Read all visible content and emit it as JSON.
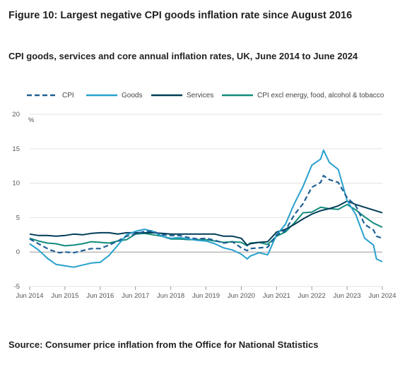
{
  "header": {
    "title": "Figure 10: Largest negative CPI goods inflation rate since August 2016",
    "subtitle": "CPI goods, services and core annual inflation rates, UK, June 2014 to June 2024"
  },
  "source": "Source: Consumer price inflation from the Office for National Statistics",
  "chart_data": {
    "type": "line",
    "ylabel": "%",
    "ylim": [
      -5,
      20
    ],
    "yticks": [
      -5,
      0,
      5,
      10,
      15,
      20
    ],
    "xlim": [
      "2014-06",
      "2024-06"
    ],
    "xticks": [
      "Jun 2014",
      "Jun 2015",
      "Jun 2016",
      "Jun 2017",
      "Jun 2018",
      "Jun 2019",
      "Jun 2020",
      "Jun 2021",
      "Jun 2022",
      "Jun 2023",
      "Jun 2024"
    ],
    "legend": "top",
    "colors": {
      "cpi": "#206095",
      "goods": "#27a0cc",
      "services": "#003c57",
      "core": "#118c7b"
    },
    "series": [
      {
        "name": "CPI",
        "style": "dashed",
        "color": "#206095",
        "x": [
          "2014-06",
          "2014-09",
          "2014-12",
          "2015-01",
          "2015-04",
          "2015-06",
          "2015-09",
          "2015-12",
          "2016-03",
          "2016-06",
          "2016-09",
          "2016-12",
          "2017-03",
          "2017-06",
          "2017-09",
          "2017-12",
          "2018-03",
          "2018-06",
          "2018-09",
          "2018-12",
          "2019-03",
          "2019-06",
          "2019-09",
          "2019-12",
          "2020-03",
          "2020-06",
          "2020-08",
          "2020-09",
          "2020-12",
          "2021-03",
          "2021-06",
          "2021-09",
          "2021-12",
          "2022-03",
          "2022-06",
          "2022-09",
          "2022-10",
          "2022-12",
          "2023-03",
          "2023-06",
          "2023-09",
          "2023-12",
          "2024-03",
          "2024-04",
          "2024-06"
        ],
        "values": [
          1.9,
          1.2,
          0.5,
          0.3,
          -0.1,
          0.0,
          -0.1,
          0.2,
          0.5,
          0.5,
          1.0,
          1.6,
          2.3,
          2.6,
          3.0,
          3.0,
          2.5,
          2.4,
          2.4,
          2.1,
          1.9,
          2.0,
          1.7,
          1.3,
          1.5,
          0.6,
          0.2,
          0.5,
          0.6,
          0.7,
          2.5,
          3.1,
          5.4,
          7.0,
          9.4,
          10.1,
          11.1,
          10.5,
          10.1,
          7.9,
          6.7,
          4.0,
          3.2,
          2.3,
          2.0
        ]
      },
      {
        "name": "Goods",
        "style": "solid",
        "color": "#27a0cc",
        "x": [
          "2014-06",
          "2014-09",
          "2014-12",
          "2015-03",
          "2015-06",
          "2015-09",
          "2015-12",
          "2016-03",
          "2016-06",
          "2016-09",
          "2016-12",
          "2017-03",
          "2017-06",
          "2017-09",
          "2017-12",
          "2018-03",
          "2018-06",
          "2018-09",
          "2018-12",
          "2019-03",
          "2019-06",
          "2019-09",
          "2019-12",
          "2020-03",
          "2020-06",
          "2020-08",
          "2020-09",
          "2020-12",
          "2021-03",
          "2021-06",
          "2021-09",
          "2021-12",
          "2022-03",
          "2022-06",
          "2022-09",
          "2022-10",
          "2022-12",
          "2023-03",
          "2023-06",
          "2023-09",
          "2023-12",
          "2024-03",
          "2024-04",
          "2024-06"
        ],
        "values": [
          1.2,
          0.3,
          -0.9,
          -1.8,
          -2.0,
          -2.2,
          -1.9,
          -1.6,
          -1.5,
          -0.5,
          1.0,
          2.5,
          3.0,
          3.3,
          3.0,
          2.3,
          2.0,
          2.1,
          1.9,
          1.7,
          1.6,
          1.2,
          0.6,
          0.3,
          -0.3,
          -1.0,
          -0.6,
          -0.1,
          -0.4,
          2.5,
          4.0,
          7.0,
          9.5,
          12.6,
          13.5,
          14.8,
          13.0,
          12.0,
          7.5,
          5.4,
          2.0,
          1.0,
          -1.0,
          -1.4
        ]
      },
      {
        "name": "Services",
        "style": "solid",
        "color": "#003c57",
        "x": [
          "2014-06",
          "2014-09",
          "2014-12",
          "2015-03",
          "2015-06",
          "2015-09",
          "2015-12",
          "2016-03",
          "2016-06",
          "2016-09",
          "2016-12",
          "2017-03",
          "2017-06",
          "2017-09",
          "2017-12",
          "2018-03",
          "2018-06",
          "2018-09",
          "2018-12",
          "2019-03",
          "2019-06",
          "2019-09",
          "2019-12",
          "2020-03",
          "2020-06",
          "2020-08",
          "2020-09",
          "2020-12",
          "2021-03",
          "2021-06",
          "2021-09",
          "2021-12",
          "2022-03",
          "2022-06",
          "2022-09",
          "2022-12",
          "2023-03",
          "2023-06",
          "2023-09",
          "2023-12",
          "2024-03",
          "2024-06"
        ],
        "values": [
          2.6,
          2.4,
          2.4,
          2.3,
          2.4,
          2.6,
          2.5,
          2.7,
          2.8,
          2.8,
          2.6,
          2.8,
          2.8,
          2.8,
          2.8,
          2.7,
          2.6,
          2.6,
          2.6,
          2.6,
          2.6,
          2.6,
          2.3,
          2.3,
          2.0,
          1.0,
          1.2,
          1.4,
          1.5,
          2.9,
          3.3,
          4.0,
          4.8,
          5.5,
          6.0,
          6.3,
          6.7,
          7.4,
          6.9,
          6.5,
          6.1,
          5.7
        ]
      },
      {
        "name": "CPI excl energy, food, alcohol & tobacco",
        "style": "solid",
        "color": "#118c7b",
        "x": [
          "2014-06",
          "2014-09",
          "2014-12",
          "2015-03",
          "2015-06",
          "2015-09",
          "2015-12",
          "2016-03",
          "2016-06",
          "2016-09",
          "2016-12",
          "2017-03",
          "2017-06",
          "2017-09",
          "2017-12",
          "2018-03",
          "2018-06",
          "2018-09",
          "2018-12",
          "2019-03",
          "2019-06",
          "2019-09",
          "2019-12",
          "2020-03",
          "2020-06",
          "2020-08",
          "2020-09",
          "2020-12",
          "2021-03",
          "2021-06",
          "2021-09",
          "2021-12",
          "2022-03",
          "2022-06",
          "2022-09",
          "2022-12",
          "2023-03",
          "2023-06",
          "2023-09",
          "2023-12",
          "2024-03",
          "2024-06"
        ],
        "values": [
          2.0,
          1.6,
          1.3,
          1.2,
          0.9,
          1.0,
          1.2,
          1.5,
          1.4,
          1.3,
          1.6,
          1.8,
          2.6,
          2.7,
          2.5,
          2.3,
          1.9,
          1.9,
          1.8,
          1.8,
          1.8,
          1.6,
          1.4,
          1.5,
          1.4,
          0.9,
          1.3,
          1.4,
          1.1,
          2.3,
          2.9,
          4.2,
          5.7,
          5.8,
          6.5,
          6.3,
          6.2,
          6.9,
          6.1,
          5.1,
          4.2,
          3.6
        ]
      }
    ]
  }
}
